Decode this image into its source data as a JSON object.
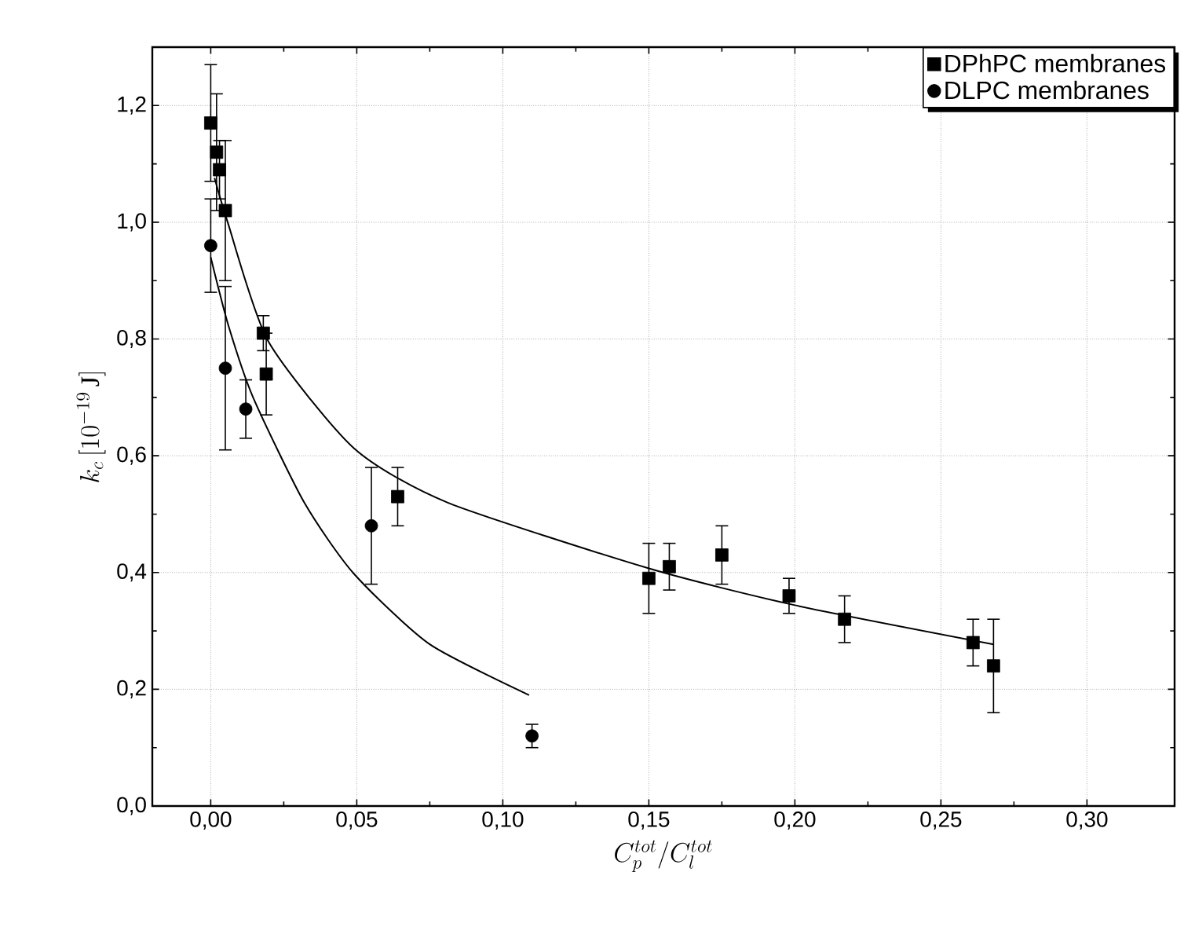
{
  "chart_data": {
    "type": "scatter",
    "xlabel": "C_p^{tot}/C_l^{tot}",
    "ylabel": "k_c\\,[10^{-19}\\,\\mathrm{J}]",
    "xlim": [
      -0.02,
      0.33
    ],
    "ylim": [
      0,
      1.3
    ],
    "xticks": [
      {
        "value": 0,
        "label": "0,00"
      },
      {
        "value": 0.05,
        "label": "0,05"
      },
      {
        "value": 0.1,
        "label": "0,10"
      },
      {
        "value": 0.15,
        "label": "0,15"
      },
      {
        "value": 0.2,
        "label": "0,20"
      },
      {
        "value": 0.25,
        "label": "0,25"
      },
      {
        "value": 0.3,
        "label": "0,30"
      }
    ],
    "yticks": [
      {
        "value": 0,
        "label": "0,0"
      },
      {
        "value": 0.2,
        "label": "0,2"
      },
      {
        "value": 0.4,
        "label": "0,4"
      },
      {
        "value": 0.6,
        "label": "0,6"
      },
      {
        "value": 0.8,
        "label": "0,8"
      },
      {
        "value": 1.0,
        "label": "1,0"
      },
      {
        "value": 1.2,
        "label": "1,2"
      }
    ],
    "grid": true,
    "legend": "top right",
    "series": [
      {
        "name": "DPhPC membranes",
        "marker": "square",
        "color": "#000000",
        "x": [
          0.0,
          0.002,
          0.003,
          0.005,
          0.018,
          0.019,
          0.064,
          0.15,
          0.157,
          0.175,
          0.198,
          0.217,
          0.261,
          0.268
        ],
        "values": [
          1.17,
          1.12,
          1.09,
          1.02,
          0.81,
          0.74,
          0.53,
          0.39,
          0.41,
          0.43,
          0.36,
          0.32,
          0.28,
          0.24
        ],
        "errors": [
          0.1,
          0.1,
          0.05,
          0.12,
          0.03,
          0.07,
          0.05,
          0.06,
          0.04,
          0.05,
          0.03,
          0.04,
          0.04,
          0.08
        ]
      },
      {
        "name": "DLPC membranes",
        "marker": "circle",
        "color": "#000000",
        "x": [
          0.0,
          0.005,
          0.012,
          0.055,
          0.11
        ],
        "values": [
          0.96,
          0.75,
          0.68,
          0.48,
          0.12
        ],
        "errors": [
          0.08,
          0.14,
          0.05,
          0.1,
          0.02
        ]
      },
      {
        "type": "line",
        "color": "#000000",
        "x": [
          0.0013,
          0.0058,
          0.0196,
          0.049,
          0.081,
          0.15,
          0.2,
          0.268
        ],
        "values": [
          1.076,
          1.0,
          0.797,
          0.613,
          0.52,
          0.407,
          0.344,
          0.277
        ]
      },
      {
        "type": "line",
        "color": "#000000",
        "x": [
          0.0,
          0.006,
          0.0145,
          0.032,
          0.049,
          0.075,
          0.109
        ],
        "values": [
          0.94,
          0.824,
          0.7,
          0.52,
          0.398,
          0.277,
          0.19
        ]
      }
    ]
  }
}
